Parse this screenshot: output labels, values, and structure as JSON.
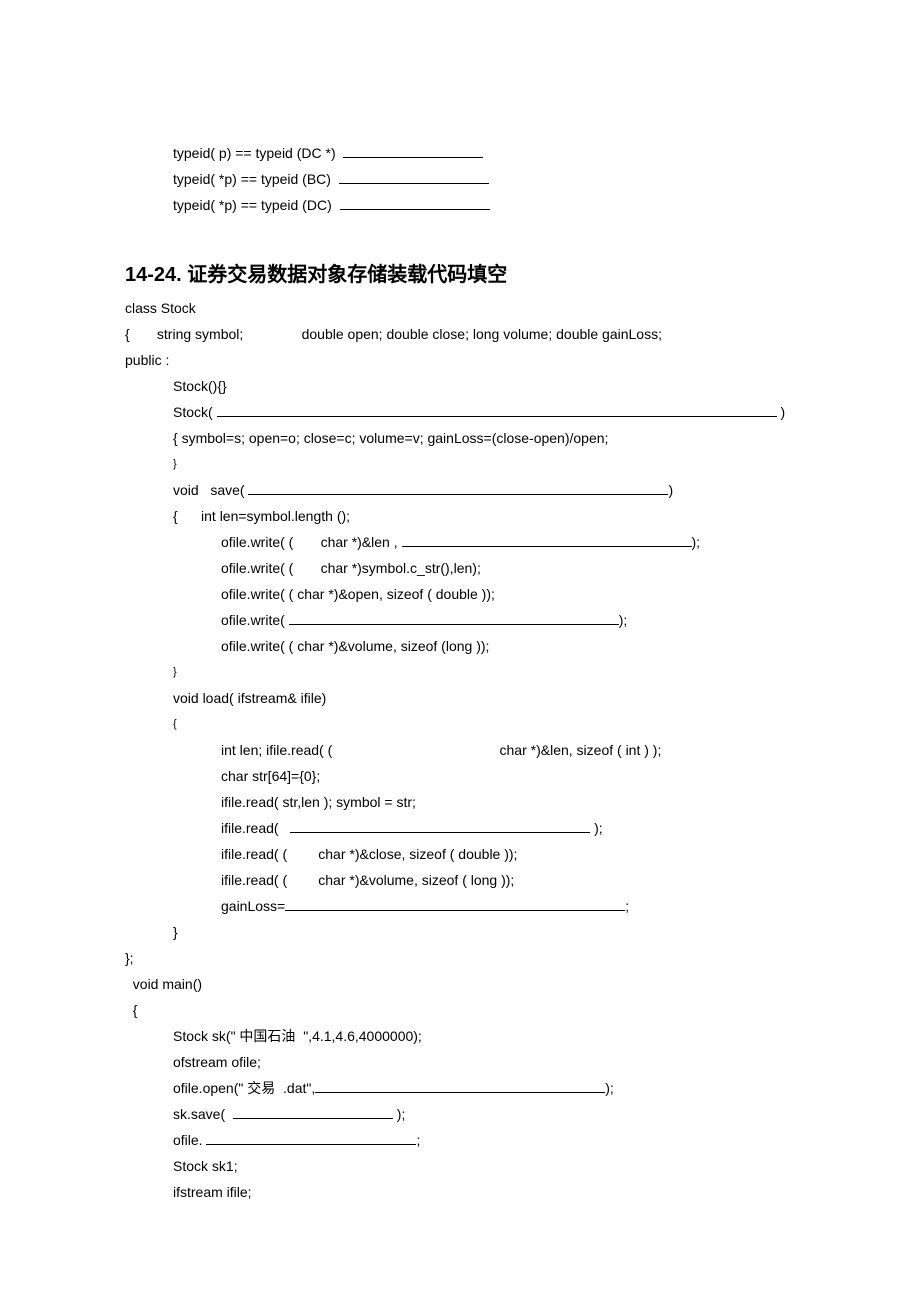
{
  "top": {
    "l1a": "typeid( p) == typeid (DC *)  ",
    "l2a": "typeid( *p) == typeid (BC)  ",
    "l3a": "typeid( *p) == typeid (DC)  "
  },
  "heading": "14-24. 证券交易数据对象存储装载代码填空",
  "body": {
    "l01": "class Stock",
    "l02": "{       string symbol;               double open; double close; long volume; double gainLoss;",
    "l03": "public :",
    "l04": "Stock(){}",
    "l05a": "Stock( ",
    "l05b": " )",
    "l06": "{ symbol=s; open=o; close=c; volume=v; gainLoss=(close-open)/open;",
    "l07": "}",
    "l08a": "void   save( ",
    "l08b": ")",
    "l09": "{      int len=symbol.length ();",
    "l10a": "ofile.write( (       char *)&len , ",
    "l10b": ");",
    "l11": "ofile.write( (       char *)symbol.c_str(),len);",
    "l12": "ofile.write( ( char *)&open, sizeof ( double ));",
    "l13a": "ofile.write( ",
    "l13b": ");",
    "l14": "ofile.write( ( char *)&volume, sizeof (long ));",
    "l15": "}",
    "l16": "void load( ifstream& ifile)",
    "l17": "{",
    "l18": "int len; ifile.read( (                                           char *)&len, sizeof ( int ) );",
    "l19": "char str[64]={0};",
    "l20": "ifile.read( str,len ); symbol = str;",
    "l21a": "ifile.read(   ",
    "l21b": " );",
    "l22": "ifile.read( (        char *)&close, sizeof ( double ));",
    "l23": "ifile.read( (        char *)&volume, sizeof ( long ));",
    "l24a": "gainLoss=",
    "l24b": ";",
    "l25": "}",
    "l26": "};",
    "l27": "  void main()",
    "l28": "  {",
    "l29": "Stock sk(\" 中国石油  \",4.1,4.6,4000000);",
    "l30": "ofstream ofile;",
    "l31a": "ofile.open(\" 交易  .dat\",",
    "l31b": ");",
    "l32a": "sk.save(  ",
    "l32b": " );",
    "l33a": "ofile. ",
    "l33b": ";",
    "l34": "Stock sk1;",
    "l35": "ifstream ifile;"
  },
  "blanks": {
    "top1": 140,
    "top2": 150,
    "top3": 150,
    "stockCtor": 560,
    "save": 420,
    "lenSizeof": 290,
    "writeClose": 330,
    "readOpen": 300,
    "gainLoss": 340,
    "openMode": 290,
    "skSave": 160,
    "ofileClose": 210
  }
}
